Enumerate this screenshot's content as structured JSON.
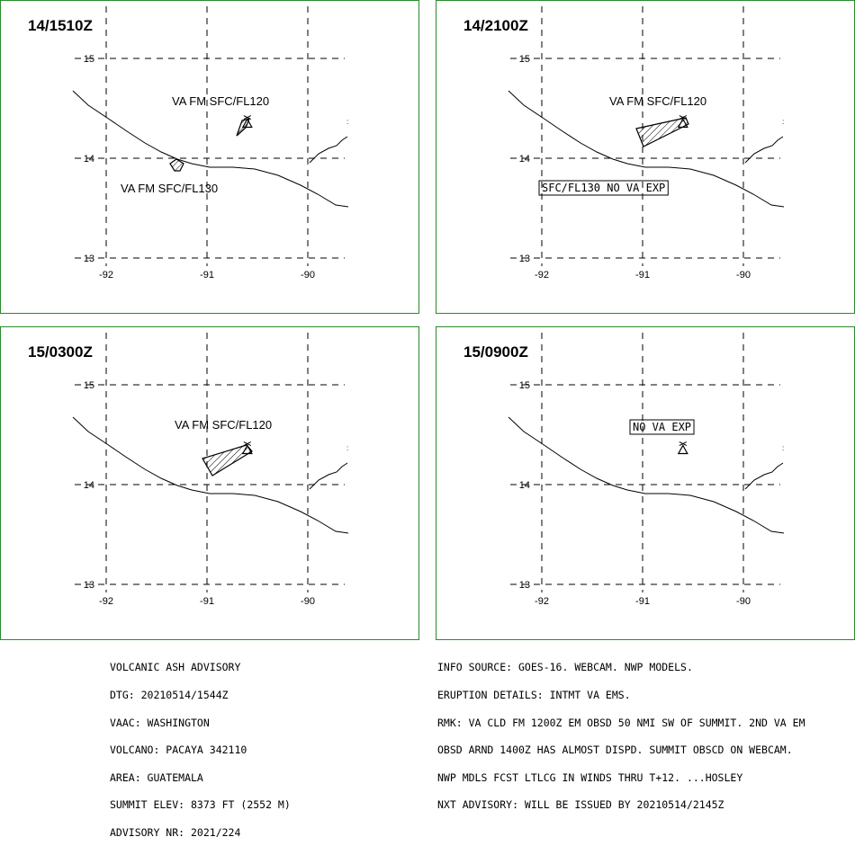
{
  "axes": {
    "lat_labels": [
      "15",
      "14",
      "13"
    ],
    "lon_labels": [
      "-92",
      "-91",
      "-90"
    ],
    "lat_range": [
      12.8,
      15.55
    ],
    "lon_range": [
      -92.3,
      -89.75
    ]
  },
  "colors": {
    "frame": "#2a8a2a",
    "ink": "#000000"
  },
  "panels": [
    {
      "time": "14/1510Z",
      "labels": [
        {
          "text": "VA FM SFC/FL120",
          "boxed": false
        },
        {
          "text": "VA FM SFC/FL130",
          "boxed": false
        }
      ]
    },
    {
      "time": "14/2100Z",
      "labels": [
        {
          "text": "VA FM SFC/FL120",
          "boxed": false
        },
        {
          "text": "SFC/FL130 NO VA EXP",
          "boxed": true
        }
      ]
    },
    {
      "time": "15/0300Z",
      "labels": [
        {
          "text": "VA FM SFC/FL120",
          "boxed": false
        }
      ]
    },
    {
      "time": "15/0900Z",
      "labels": [
        {
          "text": "NO VA EXP",
          "boxed": true
        }
      ]
    }
  ],
  "volcano": {
    "name": "PACAYA",
    "lat": 14.38,
    "lon": -90.6,
    "icon": "volcano-triangle-icon"
  },
  "advisory_left": [
    "VOLCANIC ASH ADVISORY",
    "DTG: 20210514/1544Z",
    "VAAC: WASHINGTON",
    "VOLCANO: PACAYA 342110",
    "AREA: GUATEMALA",
    "SUMMIT ELEV: 8373 FT (2552 M)",
    "ADVISORY NR: 2021/224"
  ],
  "advisory_right": [
    "INFO SOURCE: GOES-16. WEBCAM. NWP MODELS.",
    "ERUPTION DETAILS: INTMT VA EMS.",
    "RMK: VA CLD FM 1200Z EM OBSD 50 NMI SW OF SUMMIT. 2ND VA EM",
    "OBSD ARND 1400Z HAS ALMOST DISPD. SUMMIT OBSCD ON WEBCAM.",
    "NWP MDLS FCST LTLCG IN WINDS THRU T+12. ...HOSLEY",
    "NXT ADVISORY: WILL BE ISSUED BY 20210514/2145Z"
  ]
}
